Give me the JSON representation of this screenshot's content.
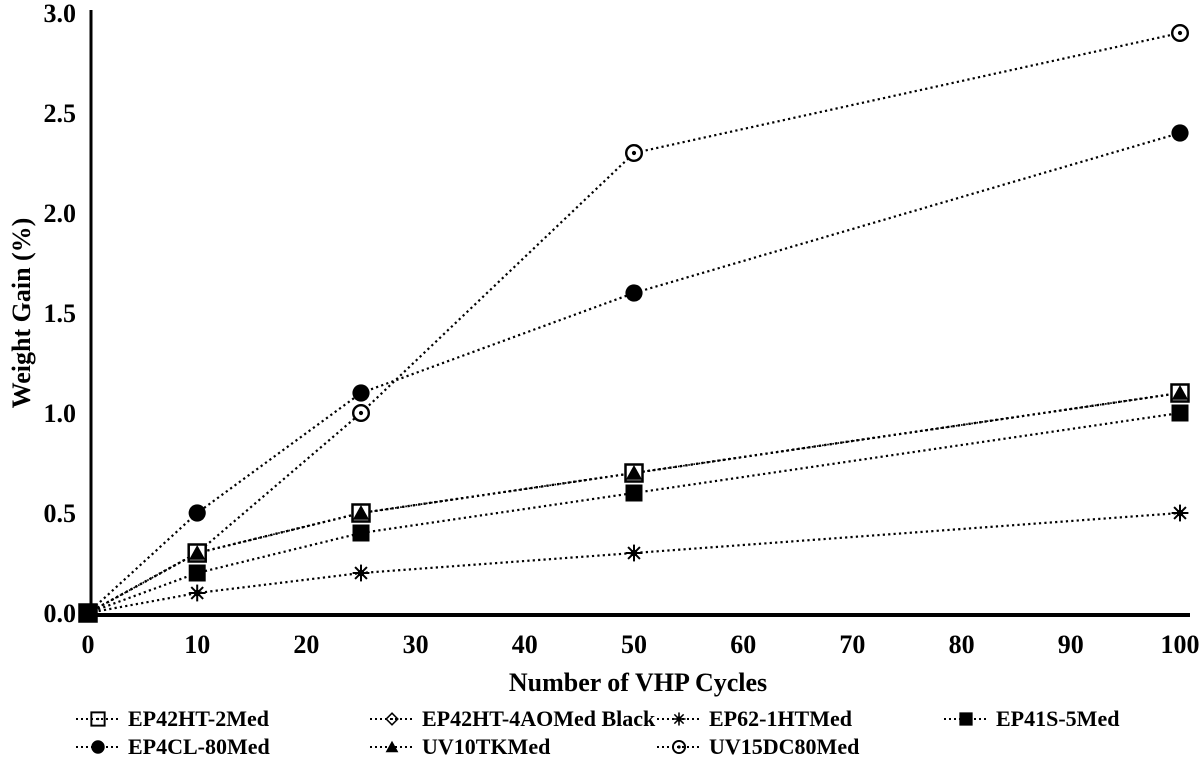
{
  "figure": {
    "background": "#ffffff",
    "ink": "#000000"
  },
  "chart_data": {
    "type": "line",
    "title": "",
    "xlabel": "Number of VHP Cycles",
    "ylabel": "Weight Gain (%)",
    "x": [
      0,
      10,
      25,
      50,
      100
    ],
    "xlim": [
      0,
      100
    ],
    "ylim": [
      0,
      3.0
    ],
    "x_ticks": [
      "0",
      "10",
      "20",
      "30",
      "40",
      "50",
      "60",
      "70",
      "80",
      "90",
      "100"
    ],
    "y_ticks": [
      "0.0",
      "0.5",
      "1.0",
      "1.5",
      "2.0",
      "2.5",
      "3.0"
    ],
    "grid": false,
    "line_style": "dotted",
    "legend_position": "bottom",
    "series": [
      {
        "name": "EP42HT-2Med",
        "marker": "open-square",
        "values": [
          0,
          0.3,
          0.5,
          0.7,
          1.1
        ]
      },
      {
        "name": "EP42HT-4AOMed Black",
        "marker": "open-diamond",
        "values": [
          0,
          0.3,
          0.5,
          0.7,
          1.1
        ]
      },
      {
        "name": "EP62-1HTMed",
        "marker": "asterisk",
        "values": [
          0,
          0.1,
          0.2,
          0.3,
          0.5
        ]
      },
      {
        "name": "EP41S-5Med",
        "marker": "filled-square",
        "values": [
          0,
          0.2,
          0.4,
          0.6,
          1.0
        ]
      },
      {
        "name": "EP4CL-80Med",
        "marker": "filled-circle",
        "values": [
          0,
          0.5,
          1.1,
          1.6,
          2.4
        ]
      },
      {
        "name": "UV10TKMed",
        "marker": "filled-triangle",
        "values": [
          0,
          0.3,
          0.5,
          0.7,
          1.1
        ]
      },
      {
        "name": "UV15DC80Med",
        "marker": "open-circle-dot",
        "values": [
          0,
          0.3,
          1.0,
          2.3,
          2.9
        ]
      }
    ]
  }
}
